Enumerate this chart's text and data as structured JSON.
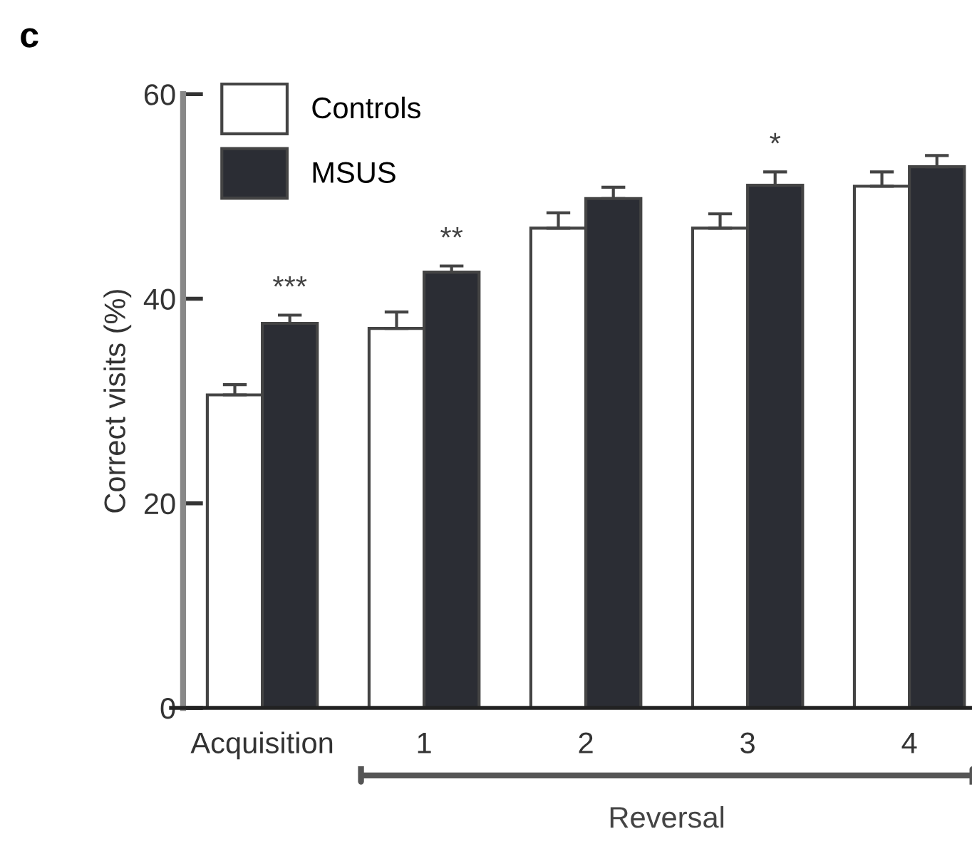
{
  "chart_data": {
    "type": "bar",
    "ylabel": "Correct visits (%)",
    "categories": [
      "Acquisition",
      "1",
      "2",
      "3",
      "4"
    ],
    "series": [
      {
        "name": "Controls",
        "color": "#ffffff",
        "values": [
          30.6,
          37.1,
          46.9,
          46.9,
          51.0
        ],
        "errors": [
          1.0,
          1.6,
          1.5,
          1.4,
          1.4
        ]
      },
      {
        "name": "MSUS",
        "color": "#2b2d34",
        "values": [
          37.6,
          42.6,
          49.8,
          51.1,
          52.9
        ],
        "errors": [
          0.8,
          0.6,
          1.1,
          1.3,
          1.1
        ]
      }
    ],
    "ylim": [
      0,
      60
    ],
    "yticks": [
      0,
      20,
      40,
      60
    ],
    "grid": false,
    "legend": "top left",
    "annotations": [
      "c",
      "***",
      "**",
      "*",
      "Reversal"
    ]
  }
}
